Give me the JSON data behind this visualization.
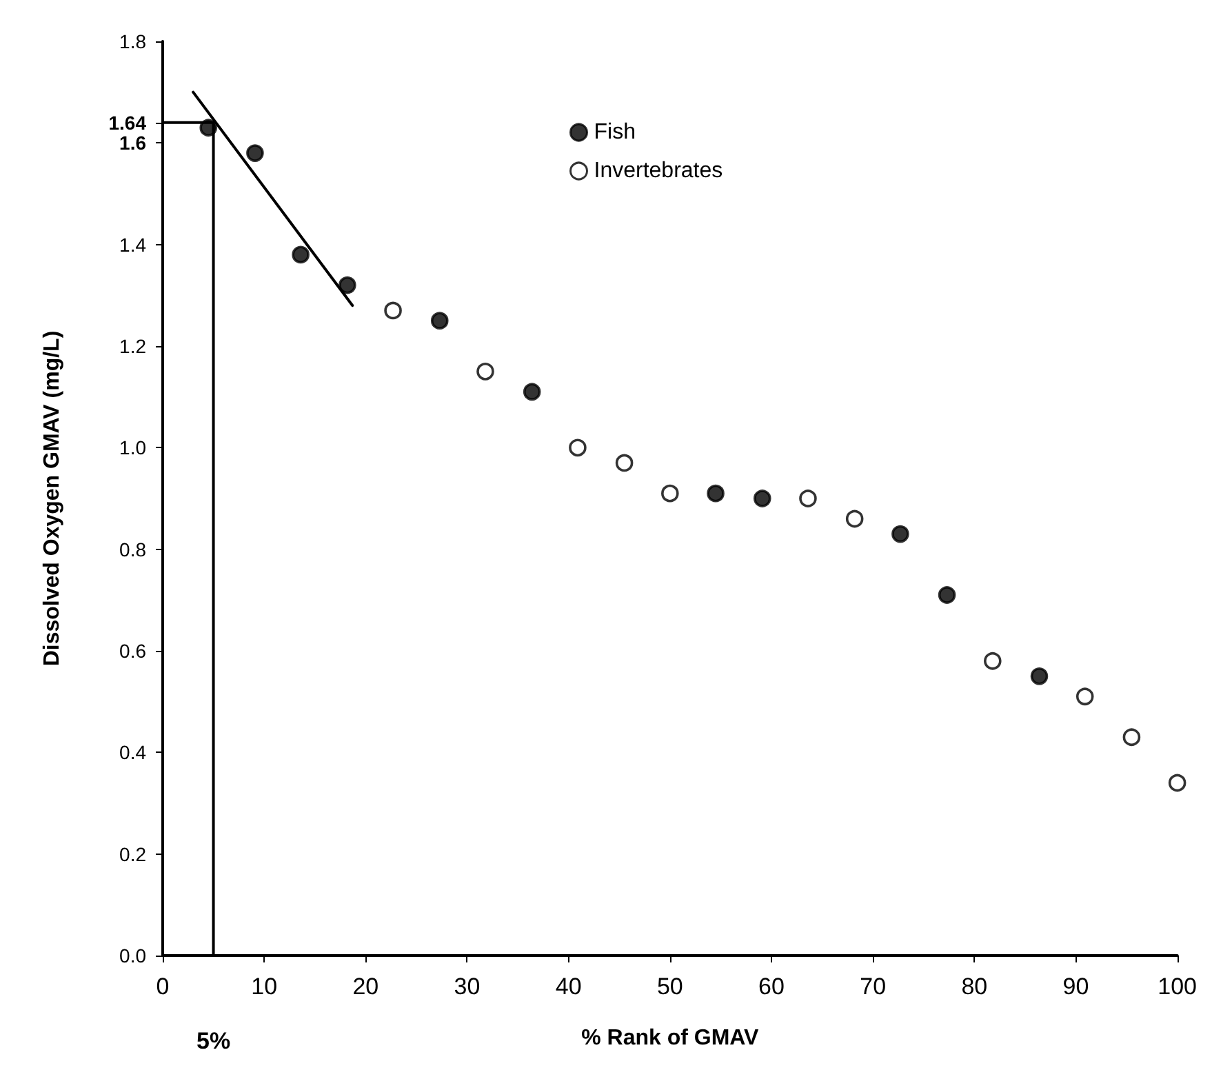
{
  "chart_data": {
    "type": "scatter",
    "xlabel": "% Rank of GMAV",
    "ylabel": "Dissolved Oxygen GMAV (mg/L)",
    "xlim": [
      0,
      100
    ],
    "xticks": [
      0,
      10,
      20,
      30,
      40,
      50,
      60,
      70,
      80,
      90,
      100
    ],
    "ylim": [
      0,
      1.8
    ],
    "yticks": [
      {
        "value": 0,
        "label": "0.0"
      },
      0.2,
      0.4,
      0.6,
      0.8,
      {
        "value": 1,
        "label": "1.0"
      },
      1.2,
      1.4,
      1.6,
      {
        "value": 1.64,
        "label": "1.64"
      },
      1.8
    ],
    "grid": false,
    "legend": "top",
    "marker": "circle",
    "series": [
      {
        "name": "Fish",
        "color": "#000000",
        "x": [
          4.5,
          9.1,
          13.6,
          18.2,
          27.3,
          36.4,
          54.5,
          59.1,
          72.7,
          77.3,
          86.4
        ],
        "values": [
          1.63,
          1.58,
          1.38,
          1.32,
          1.25,
          1.11,
          0.91,
          0.9,
          0.83,
          0.71,
          0.55
        ]
      },
      {
        "name": "Invertebrates",
        "color": "#ffffff",
        "x": [
          22.7,
          31.8,
          40.9,
          45.5,
          50,
          63.6,
          68.2,
          81.8,
          90.9,
          95.5,
          100
        ],
        "values": [
          1.27,
          1.15,
          1.0,
          0.97,
          0.91,
          0.9,
          0.86,
          0.58,
          0.51,
          0.43,
          0.34
        ]
      },
      {
        "type": "line",
        "color": "#000000",
        "marker": "none",
        "line_style": "solid",
        "x": [
          3.0,
          18.7
        ],
        "values": [
          1.7,
          1.28
        ]
      },
      {
        "type": "line",
        "color": "#000000",
        "marker": "none",
        "line_style": "solid",
        "x": [
          0,
          5
        ],
        "values": [
          1.64,
          1.64
        ]
      },
      {
        "type": "line",
        "color": "#000000",
        "marker": "none",
        "line_style": "solid",
        "x": [
          5,
          5
        ],
        "values": [
          0,
          1.64
        ]
      }
    ],
    "annotations": [
      "5%"
    ]
  }
}
